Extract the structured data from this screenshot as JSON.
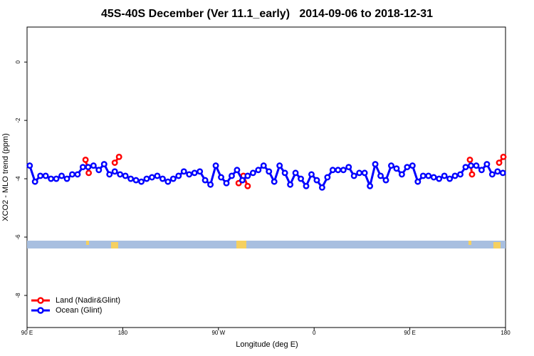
{
  "chart_data": {
    "type": "line",
    "title": "45S-40S December (Ver 11.1_early)   2014-09-06 to 2018-12-31",
    "xlabel": "Longitude (deg E)",
    "ylabel": "XCO2 - MLO trend (ppm)",
    "xlim": [
      90,
      540
    ],
    "ylim": [
      -9.1,
      1.2
    ],
    "xticks": [
      {
        "value": 90,
        "label": "90 E"
      },
      {
        "value": 180,
        "label": "180"
      },
      {
        "value": 270,
        "label": "90 W"
      },
      {
        "value": 360,
        "label": "0"
      },
      {
        "value": 450,
        "label": "90 E"
      },
      {
        "value": 540,
        "label": "180"
      }
    ],
    "yticks": [
      0,
      -2,
      -4,
      -6,
      -8
    ],
    "legend": "bottom-left",
    "series": [
      {
        "name": "Land (Nadir&Glint)",
        "color": "#ff0000",
        "x": [
          145,
          148,
          null,
          172.5,
          176.5,
          null,
          289,
          293.5,
          297.5,
          null,
          506.5,
          508.5,
          null,
          534,
          538
        ],
        "values": [
          -3.35,
          -3.8,
          null,
          -3.45,
          -3.25,
          null,
          -4.15,
          -3.9,
          -4.25,
          null,
          -3.35,
          -3.85,
          null,
          -3.45,
          -3.25
        ]
      },
      {
        "name": "Ocean (Glint)",
        "color": "#0000ff",
        "x": [
          92.5,
          97.5,
          102.5,
          107.5,
          112.5,
          117.5,
          122.5,
          127.5,
          132.5,
          137.5,
          142.5,
          147.5,
          152.5,
          157.5,
          162.5,
          167.5,
          172.5,
          177.5,
          182.5,
          187.5,
          192.5,
          197.5,
          202.5,
          207.5,
          212.5,
          217.5,
          222.5,
          227.5,
          232.5,
          237.5,
          242.5,
          247.5,
          252.5,
          257.5,
          262.5,
          267.5,
          272.5,
          277.5,
          282.5,
          287.5,
          292.5,
          297.5,
          302.5,
          307.5,
          312.5,
          317.5,
          322.5,
          327.5,
          332.5,
          337.5,
          342.5,
          347.5,
          352.5,
          357.5,
          362.5,
          367.5,
          372.5,
          377.5,
          382.5,
          387.5,
          392.5,
          397.5,
          402.5,
          407.5,
          412.5,
          417.5,
          422.5,
          427.5,
          432.5,
          437.5,
          442.5,
          447.5,
          452.5,
          457.5,
          462.5,
          467.5,
          472.5,
          477.5,
          482.5,
          487.5,
          492.5,
          497.5,
          502.5,
          507.5,
          512.5,
          517.5,
          522.5,
          527.5,
          532.5,
          537.5
        ],
        "values": [
          -3.55,
          -4.1,
          -3.9,
          -3.9,
          -4.0,
          -4.0,
          -3.9,
          -4.0,
          -3.85,
          -3.85,
          -3.6,
          -3.6,
          -3.55,
          -3.7,
          -3.5,
          -3.85,
          -3.75,
          -3.85,
          -3.9,
          -4.0,
          -4.05,
          -4.1,
          -4.0,
          -3.95,
          -3.9,
          -4.0,
          -4.1,
          -4.0,
          -3.9,
          -3.75,
          -3.85,
          -3.8,
          -3.75,
          -4.05,
          -4.2,
          -3.55,
          -3.95,
          -4.15,
          -3.9,
          -3.7,
          -4.05,
          -3.9,
          -3.8,
          -3.7,
          -3.55,
          -3.75,
          -4.1,
          -3.55,
          -3.8,
          -4.2,
          -3.8,
          -4.0,
          -4.25,
          -3.85,
          -4.05,
          -4.3,
          -3.95,
          -3.7,
          -3.7,
          -3.7,
          -3.6,
          -3.9,
          -3.8,
          -3.8,
          -4.25,
          -3.5,
          -3.9,
          -4.05,
          -3.55,
          -3.65,
          -3.85,
          -3.6,
          -3.55,
          -4.1,
          -3.9,
          -3.9,
          -3.95,
          -4.0,
          -3.9,
          -4.0,
          -3.9,
          -3.85,
          -3.6,
          -3.55,
          -3.55,
          -3.7,
          -3.5,
          -3.85,
          -3.75,
          -3.8
        ]
      }
    ]
  }
}
